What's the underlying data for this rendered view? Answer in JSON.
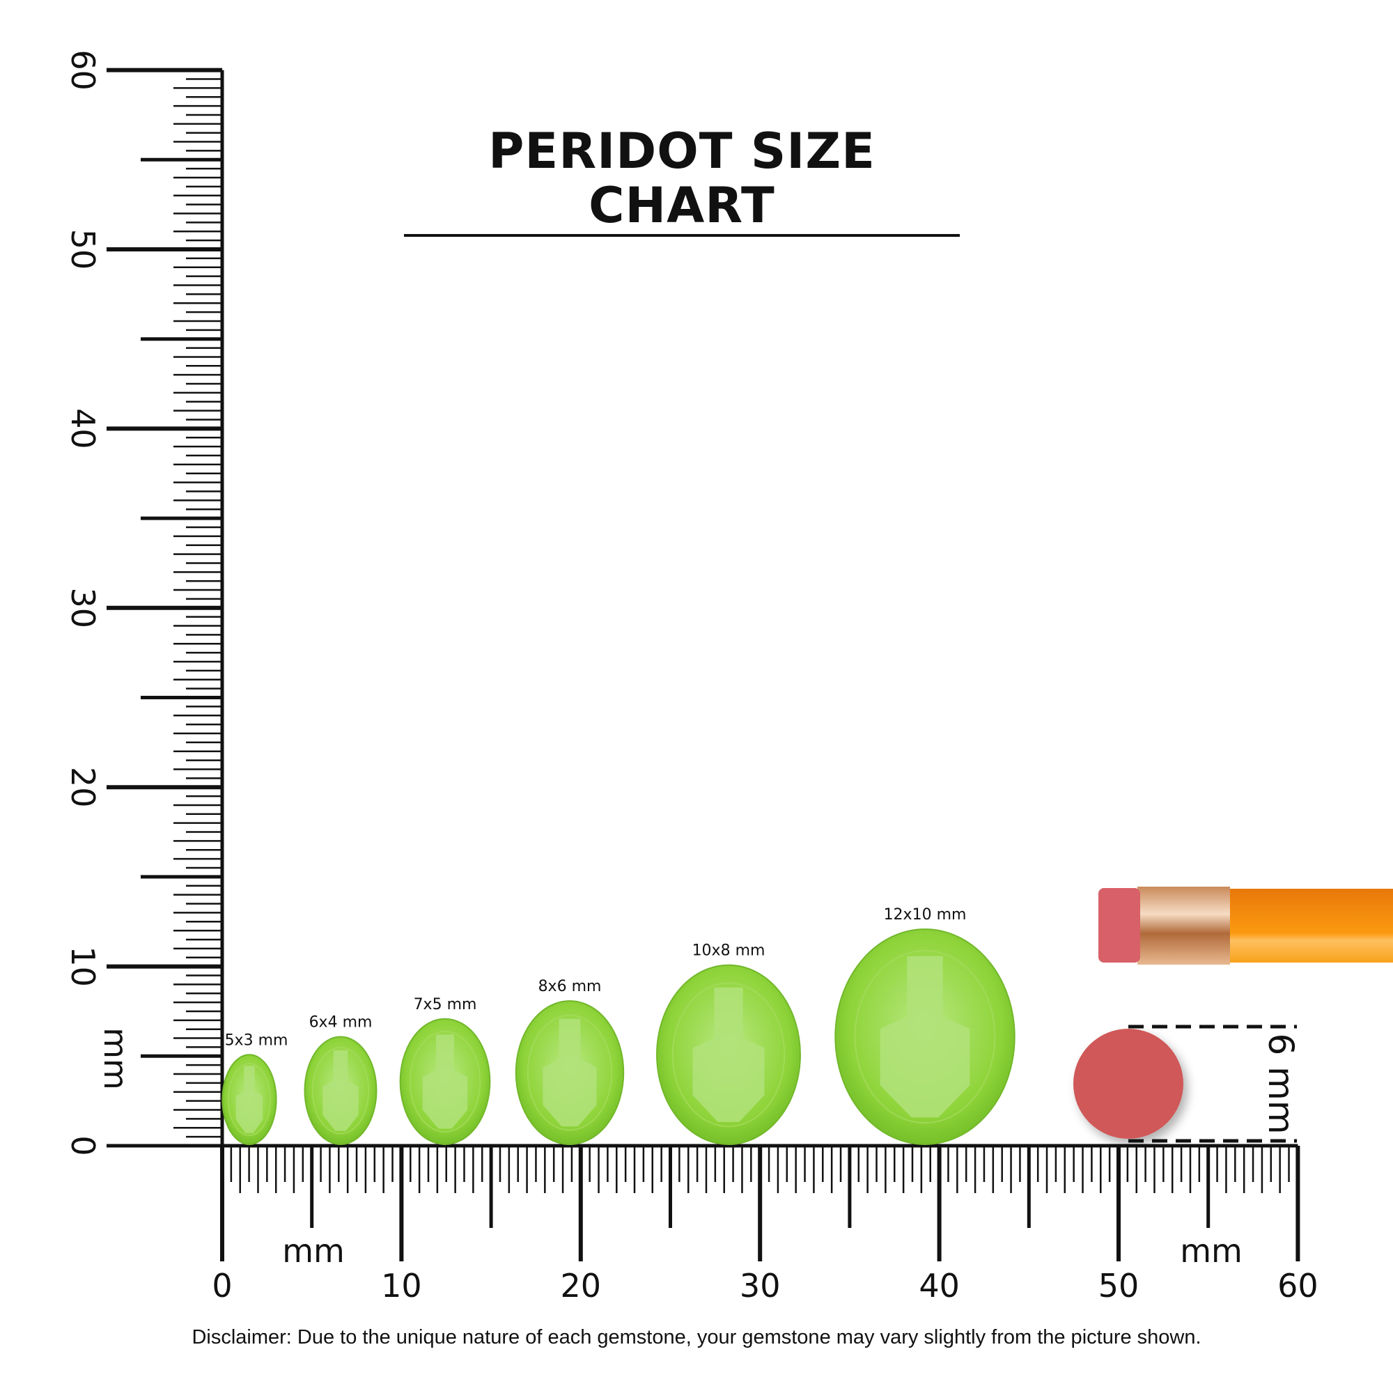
{
  "title": "PERIDOT SIZE CHART",
  "ruler": {
    "unit_label": "mm",
    "min": 0,
    "max": 60,
    "tick_labels": [
      "0",
      "10",
      "20",
      "30",
      "40",
      "50",
      "60"
    ]
  },
  "gems": [
    {
      "label": "5x3 mm",
      "length_mm": 5,
      "width_mm": 3
    },
    {
      "label": "6x4 mm",
      "length_mm": 6,
      "width_mm": 4
    },
    {
      "label": "7x5 mm",
      "length_mm": 7,
      "width_mm": 5
    },
    {
      "label": "8x6 mm",
      "length_mm": 8,
      "width_mm": 6
    },
    {
      "label": "10x8 mm",
      "length_mm": 10,
      "width_mm": 8
    },
    {
      "label": "12x10 mm",
      "length_mm": 12,
      "width_mm": 10
    }
  ],
  "reference": {
    "label": "6 mm",
    "diameter_mm": 6
  },
  "colors": {
    "gem": "#8fd43a",
    "gem_light": "#b4e67a",
    "eraser": "#d05858",
    "pencil": "#f5920f",
    "ferrule": "#d9a57a"
  },
  "disclaimer": "Disclaimer: Due to the unique nature of each gemstone, your gemstone may vary slightly from the picture shown."
}
